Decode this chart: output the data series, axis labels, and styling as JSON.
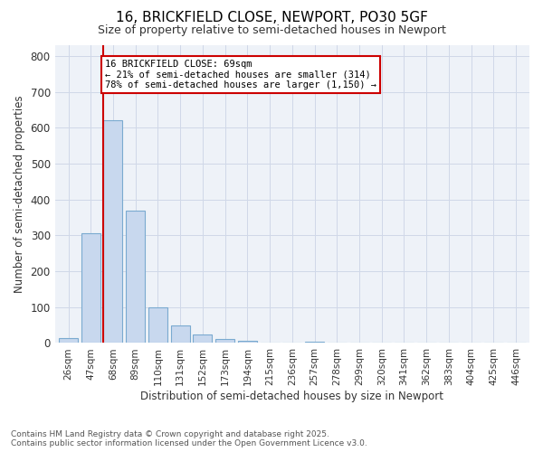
{
  "title1": "16, BRICKFIELD CLOSE, NEWPORT, PO30 5GF",
  "title2": "Size of property relative to semi-detached houses in Newport",
  "xlabel": "Distribution of semi-detached houses by size in Newport",
  "ylabel": "Number of semi-detached properties",
  "bar_labels": [
    "26sqm",
    "47sqm",
    "68sqm",
    "89sqm",
    "110sqm",
    "131sqm",
    "152sqm",
    "173sqm",
    "194sqm",
    "215sqm",
    "236sqm",
    "257sqm",
    "278sqm",
    "299sqm",
    "320sqm",
    "341sqm",
    "362sqm",
    "383sqm",
    "404sqm",
    "425sqm",
    "446sqm"
  ],
  "bar_values": [
    15,
    305,
    620,
    370,
    100,
    50,
    23,
    12,
    5,
    0,
    0,
    4,
    0,
    0,
    0,
    0,
    0,
    0,
    0,
    0,
    0
  ],
  "bar_color": "#c8d8ee",
  "bar_edge_color": "#7aaad0",
  "vline_index": 2,
  "annotation_title": "16 BRICKFIELD CLOSE: 69sqm",
  "annotation_line1": "← 21% of semi-detached houses are smaller (314)",
  "annotation_line2": "78% of semi-detached houses are larger (1,150) →",
  "annotation_box_color": "#ffffff",
  "annotation_box_edge": "#cc0000",
  "vline_color": "#cc0000",
  "ylim": [
    0,
    830
  ],
  "yticks": [
    0,
    100,
    200,
    300,
    400,
    500,
    600,
    700,
    800
  ],
  "grid_color": "#d0d8e8",
  "bg_color": "#ffffff",
  "plot_bg_color": "#eef2f8",
  "footer1": "Contains HM Land Registry data © Crown copyright and database right 2025.",
  "footer2": "Contains public sector information licensed under the Open Government Licence v3.0."
}
